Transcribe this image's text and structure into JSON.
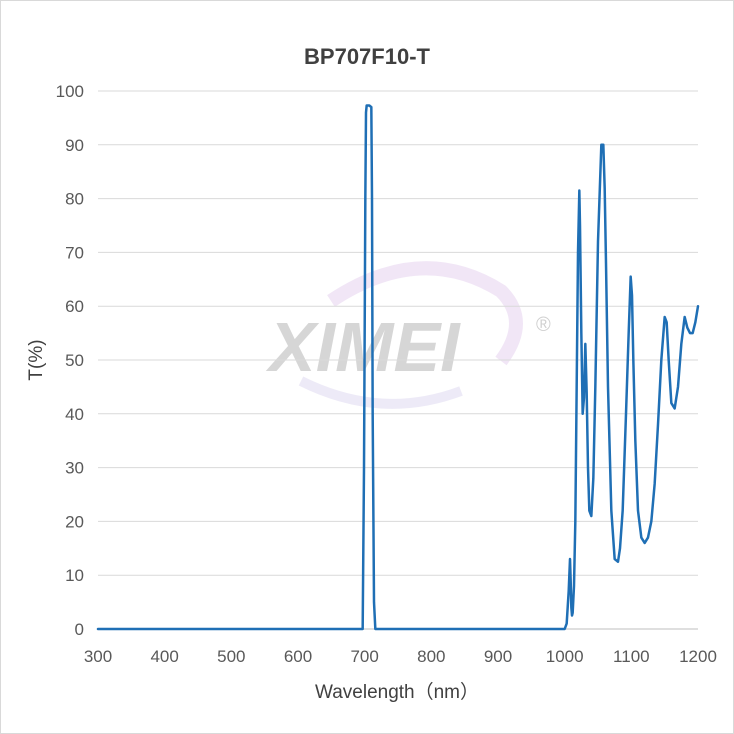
{
  "chart_data": {
    "type": "line",
    "title": "BP707F10-T",
    "xlabel": "Wavelength（nm）",
    "ylabel": "T(%)",
    "xlim": [
      300,
      1200
    ],
    "ylim": [
      0,
      100
    ],
    "x_ticks": [
      300,
      400,
      500,
      600,
      700,
      800,
      900,
      1000,
      1100,
      1200
    ],
    "y_ticks": [
      0,
      10,
      20,
      30,
      40,
      50,
      60,
      70,
      80,
      90,
      100
    ],
    "grid": "horizontal",
    "line_color": "#1f6fb5",
    "series": [
      {
        "x": [
          300,
          600,
          697,
          699,
          701,
          702,
          703,
          707,
          710,
          711,
          712,
          714,
          716,
          800,
          900,
          1000,
          1003,
          1006,
          1008,
          1009,
          1010,
          1011,
          1012,
          1014,
          1016,
          1018,
          1020,
          1022,
          1023,
          1025,
          1027,
          1029,
          1031,
          1033,
          1035,
          1037,
          1040,
          1043,
          1046,
          1050,
          1055,
          1058,
          1060,
          1062,
          1065,
          1070,
          1075,
          1080,
          1083,
          1087,
          1092,
          1096,
          1099,
          1101,
          1103,
          1106,
          1110,
          1115,
          1120,
          1125,
          1130,
          1135,
          1140,
          1145,
          1150,
          1153,
          1156,
          1160,
          1165,
          1170,
          1175,
          1180,
          1184,
          1188,
          1192,
          1196,
          1200
        ],
        "y": [
          0,
          0,
          0,
          30,
          80,
          96,
          97.3,
          97.3,
          97,
          80,
          40,
          5,
          0,
          0,
          0,
          0,
          1,
          7,
          13,
          9,
          4,
          2.5,
          3,
          8,
          20,
          45,
          70,
          81.5,
          75,
          55,
          40,
          43,
          53,
          44,
          30,
          22,
          21,
          28,
          45,
          72,
          90,
          90,
          82,
          68,
          45,
          22,
          13,
          12.5,
          15,
          22,
          40,
          55,
          65.5,
          62,
          50,
          35,
          22,
          17,
          16,
          17,
          20,
          27,
          38,
          50,
          58,
          57,
          50,
          42,
          41,
          45,
          53,
          58,
          56,
          55,
          55,
          57,
          60
        ]
      }
    ],
    "watermark": "XIMEI",
    "watermark_mark": "®"
  }
}
